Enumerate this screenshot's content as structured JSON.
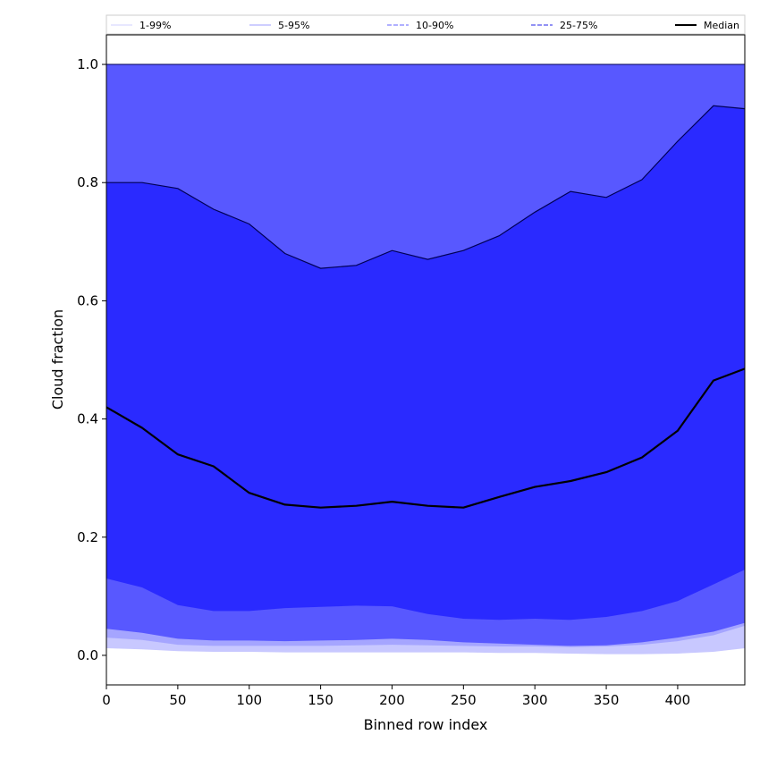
{
  "chart_data": {
    "type": "area",
    "title": "",
    "xlabel": "Binned row index",
    "ylabel": "Cloud fraction",
    "xlim": [
      0,
      447
    ],
    "ylim": [
      -0.05,
      1.05
    ],
    "x_ticks": [
      0,
      50,
      100,
      150,
      200,
      250,
      300,
      350,
      400
    ],
    "y_ticks": [
      0.0,
      0.2,
      0.4,
      0.6,
      0.8,
      1.0
    ],
    "x_tick_labels": [
      "0",
      "50",
      "100",
      "150",
      "200",
      "250",
      "300",
      "350",
      "400"
    ],
    "y_tick_labels": [
      "0.0",
      "0.2",
      "0.4",
      "0.6",
      "0.8",
      "1.0"
    ],
    "grid": false,
    "legend_position": "top",
    "x": [
      0,
      25,
      50,
      75,
      100,
      125,
      150,
      175,
      200,
      225,
      250,
      275,
      300,
      325,
      350,
      375,
      400,
      425,
      447
    ],
    "bands": [
      {
        "name": "1-99%",
        "color": "#c8c8ff",
        "lower": [
          0.012,
          0.01,
          0.007,
          0.006,
          0.006,
          0.005,
          0.005,
          0.005,
          0.005,
          0.005,
          0.005,
          0.004,
          0.004,
          0.003,
          0.002,
          0.002,
          0.003,
          0.006,
          0.012
        ],
        "upper": [
          1.0,
          1.0,
          1.0,
          1.0,
          1.0,
          1.0,
          1.0,
          1.0,
          1.0,
          1.0,
          1.0,
          1.0,
          1.0,
          1.0,
          1.0,
          1.0,
          1.0,
          1.0,
          1.0
        ]
      },
      {
        "name": "5-95%",
        "color": "#a5a5ff",
        "lower": [
          0.03,
          0.026,
          0.018,
          0.016,
          0.016,
          0.016,
          0.016,
          0.017,
          0.018,
          0.017,
          0.016,
          0.015,
          0.015,
          0.014,
          0.015,
          0.018,
          0.024,
          0.034,
          0.05
        ],
        "upper": [
          1.0,
          1.0,
          1.0,
          1.0,
          1.0,
          1.0,
          1.0,
          1.0,
          1.0,
          1.0,
          1.0,
          1.0,
          1.0,
          1.0,
          1.0,
          1.0,
          1.0,
          1.0,
          1.0
        ]
      },
      {
        "name": "10-90%",
        "color": "#5858ff",
        "lower": [
          0.045,
          0.038,
          0.028,
          0.025,
          0.025,
          0.024,
          0.025,
          0.026,
          0.028,
          0.026,
          0.022,
          0.02,
          0.018,
          0.016,
          0.017,
          0.022,
          0.03,
          0.04,
          0.055
        ],
        "upper": [
          1.0,
          1.0,
          1.0,
          1.0,
          1.0,
          1.0,
          1.0,
          1.0,
          1.0,
          1.0,
          1.0,
          1.0,
          1.0,
          1.0,
          1.0,
          1.0,
          1.0,
          1.0,
          1.0
        ]
      },
      {
        "name": "25-75%",
        "color": "#2a2aff",
        "lower": [
          0.13,
          0.115,
          0.085,
          0.075,
          0.075,
          0.08,
          0.082,
          0.084,
          0.083,
          0.07,
          0.062,
          0.06,
          0.062,
          0.06,
          0.065,
          0.075,
          0.092,
          0.12,
          0.145
        ],
        "upper": [
          0.8,
          0.8,
          0.79,
          0.755,
          0.73,
          0.68,
          0.655,
          0.66,
          0.685,
          0.67,
          0.685,
          0.71,
          0.75,
          0.785,
          0.775,
          0.805,
          0.87,
          0.93,
          0.925
        ]
      }
    ],
    "series": [
      {
        "name": "Median",
        "color": "#000000",
        "values": [
          0.42,
          0.385,
          0.34,
          0.32,
          0.275,
          0.255,
          0.25,
          0.253,
          0.26,
          0.253,
          0.25,
          0.268,
          0.285,
          0.295,
          0.31,
          0.335,
          0.38,
          0.465,
          0.485
        ]
      }
    ],
    "legend": [
      {
        "name": "1-99%",
        "color": "#dadaff",
        "style": "solid"
      },
      {
        "name": "5-95%",
        "color": "#b0b0ff",
        "style": "solid"
      },
      {
        "name": "10-90%",
        "color": "#8080ff",
        "style": "dashed"
      },
      {
        "name": "25-75%",
        "color": "#5050ee",
        "style": "dashed"
      },
      {
        "name": "Median",
        "color": "#000000",
        "style": "solid"
      }
    ]
  }
}
